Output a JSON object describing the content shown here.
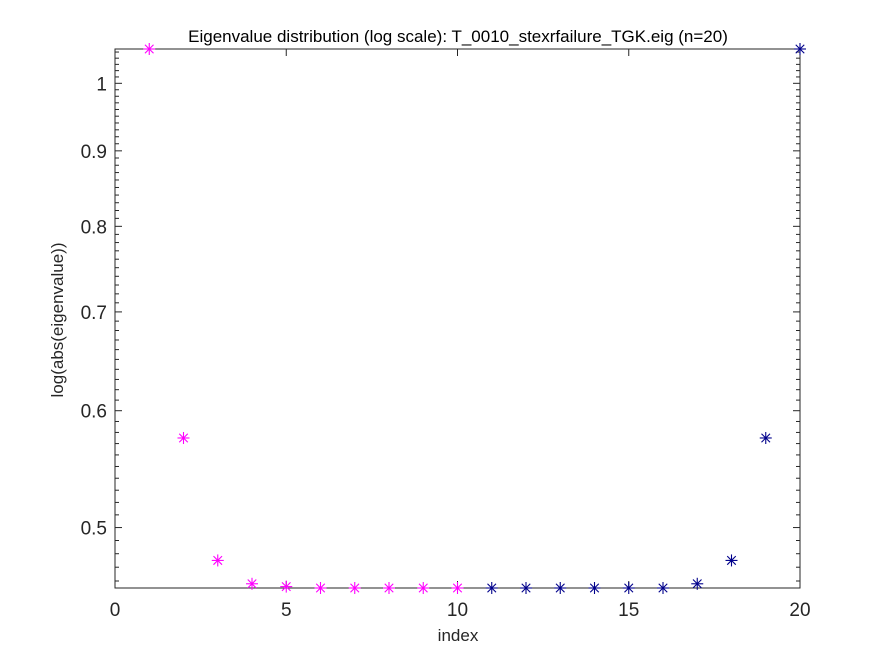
{
  "chart_data": {
    "type": "scatter",
    "title": "Eigenvalue distribution (log scale): T_0010_stexrfailure_TGK.eig (n=20)",
    "xlabel": "index",
    "ylabel": "log(abs(eigenvalue))",
    "xlim": [
      0,
      20
    ],
    "ylim": [
      0.455,
      1.055
    ],
    "yscale": "log",
    "x_ticks": [
      0,
      5,
      10,
      15,
      20
    ],
    "x_tick_labels": [
      "0",
      "5",
      "10",
      "15",
      "20"
    ],
    "y_ticks": [
      0.5,
      0.6,
      0.7,
      0.8,
      0.9,
      1.0
    ],
    "y_tick_labels": [
      "0.5",
      "0.6",
      "0.7",
      "0.8",
      "0.9",
      "1"
    ],
    "grid": false,
    "marker": "asterisk",
    "series": [
      {
        "color": "#ff00ff",
        "x": [
          1,
          2,
          3,
          4,
          5,
          6,
          7,
          8,
          9,
          10
        ],
        "y": [
          1.055,
          0.575,
          0.475,
          0.458,
          0.456,
          0.455,
          0.455,
          0.455,
          0.455,
          0.455
        ]
      },
      {
        "color": "#00008b",
        "x": [
          11,
          12,
          13,
          14,
          15,
          16,
          17,
          18,
          19,
          20
        ],
        "y": [
          0.455,
          0.455,
          0.455,
          0.455,
          0.455,
          0.455,
          0.458,
          0.475,
          0.575,
          1.055
        ]
      }
    ]
  }
}
